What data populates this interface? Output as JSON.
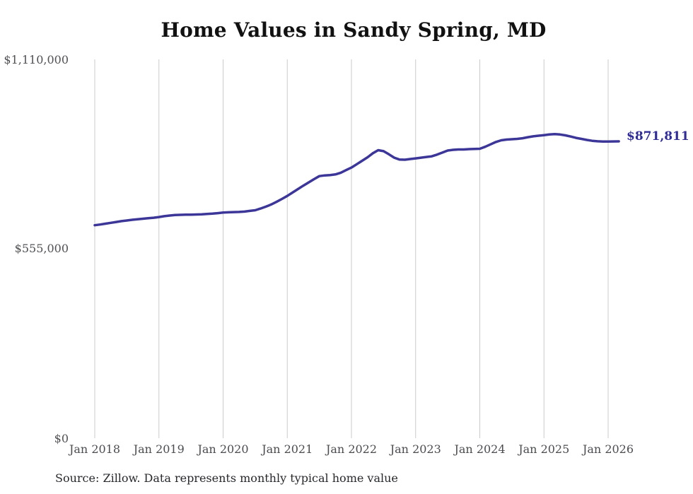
{
  "chart": {
    "title": "Home Values in Sandy Spring, MD",
    "end_label": "$871,811",
    "source_note": "Source: Zillow. Data represents monthly typical home value",
    "colors": {
      "line": "#3b3697",
      "end_label": "#2f2c96",
      "gridline": "#cbcbcb",
      "axis_text": "#4a4c4f",
      "title_text": "#111111",
      "background": "#ffffff"
    }
  },
  "chart_data": {
    "type": "line",
    "title": "Home Values in Sandy Spring, MD",
    "xlabel": "",
    "ylabel": "",
    "x_tick_labels": [
      "Jan 2018",
      "Jan 2019",
      "Jan 2020",
      "Jan 2021",
      "Jan 2022",
      "Jan 2023",
      "Jan 2024",
      "Jan 2025",
      "Jan 2026"
    ],
    "y_tick_labels": [
      "$0",
      "$555,000",
      "$1,110,000"
    ],
    "y_ticks": [
      0,
      555000,
      1110000
    ],
    "ylim": [
      0,
      1110000
    ],
    "grid": "vertical-only",
    "legend": "none",
    "end_value_label": "$871,811",
    "final_value": 871811,
    "series": [
      {
        "name": "Typical home value",
        "frequency": "monthly",
        "start": "2018-01",
        "end": "2026-03",
        "values": [
          626000,
          628000,
          630500,
          633000,
          635500,
          638000,
          640000,
          642000,
          643500,
          645000,
          646500,
          648000,
          650000,
          652500,
          654500,
          656000,
          656500,
          657000,
          657000,
          657500,
          658000,
          659000,
          660000,
          661500,
          663000,
          664000,
          664500,
          665000,
          666000,
          668000,
          670000,
          675000,
          680500,
          687000,
          694500,
          703000,
          712000,
          722000,
          732000,
          742000,
          751500,
          761000,
          770000,
          772000,
          773000,
          775000,
          780000,
          787500,
          795000,
          805000,
          815000,
          825000,
          837000,
          846000,
          843000,
          834000,
          824000,
          818500,
          818000,
          820000,
          822000,
          824000,
          826000,
          828000,
          833000,
          839000,
          845000,
          847000,
          848000,
          848000,
          849000,
          849500,
          850000,
          856000,
          863000,
          870000,
          875000,
          877000,
          878000,
          879000,
          881000,
          884000,
          886500,
          888500,
          890000,
          892000,
          893000,
          892000,
          889500,
          886000,
          882000,
          879000,
          876000,
          873500,
          872000,
          871500,
          871500,
          871600,
          871811
        ]
      }
    ]
  }
}
